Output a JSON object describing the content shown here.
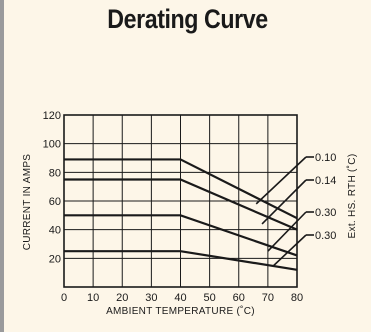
{
  "title": "Derating Curve",
  "chart_data": {
    "type": "line",
    "title": "Derating Curve",
    "xlabel": "AMBIENT TEMPERATURE (˚C)",
    "ylabel": "CURRENT IN AMPS",
    "right_label": "Ext. HS. RTH (˚C)",
    "xlim": [
      0,
      80
    ],
    "ylim": [
      0,
      120
    ],
    "x_ticks": [
      0,
      10,
      20,
      30,
      40,
      50,
      60,
      70,
      80
    ],
    "y_ticks": [
      20,
      40,
      60,
      80,
      100,
      120
    ],
    "grid": true,
    "series": [
      {
        "name": "0.10",
        "x": [
          0,
          40,
          80
        ],
        "y": [
          89,
          89,
          48
        ]
      },
      {
        "name": "0.14",
        "x": [
          0,
          40,
          80
        ],
        "y": [
          75,
          75,
          40
        ]
      },
      {
        "name": "0.30",
        "x": [
          0,
          40,
          80
        ],
        "y": [
          50,
          50,
          22
        ]
      },
      {
        "name": "0.30",
        "x": [
          0,
          40,
          80
        ],
        "y": [
          25,
          25,
          12
        ]
      }
    ],
    "series_label_y": [
      161,
      184,
      216,
      239
    ],
    "leader_targets": [
      [
        66,
        58
      ],
      [
        68,
        44
      ],
      [
        70,
        25
      ],
      [
        72,
        15
      ]
    ]
  },
  "colors": {
    "panel": "#fdf6e8",
    "line": "#1a1a1a",
    "grid": "#1a1a1a"
  }
}
